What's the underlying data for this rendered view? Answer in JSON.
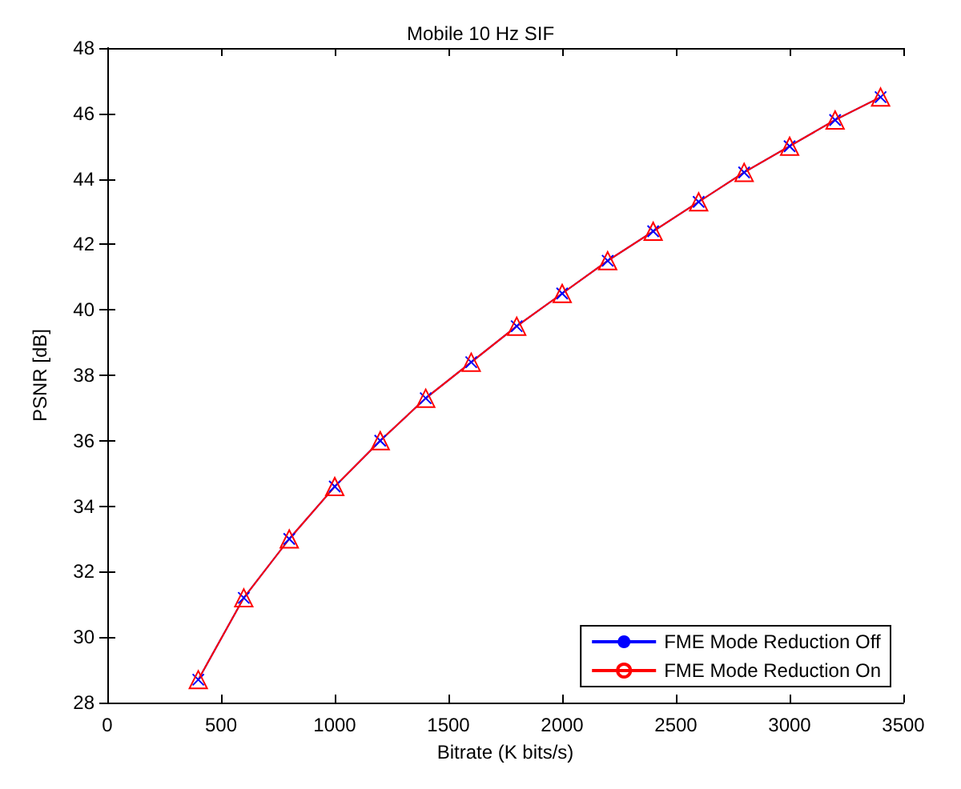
{
  "chart_data": {
    "type": "line",
    "title": "Mobile 10 Hz SIF",
    "xlabel": "Bitrate (K bits/s)",
    "ylabel": "PSNR [dB]",
    "x": [
      400,
      600,
      800,
      1000,
      1200,
      1400,
      1600,
      1800,
      2000,
      2200,
      2400,
      2600,
      2800,
      3000,
      3200,
      3400
    ],
    "series": [
      {
        "name": "FME Mode Reduction Off",
        "color": "#0000ff",
        "marker": "cross",
        "values": [
          28.7,
          31.2,
          33.0,
          34.6,
          36.0,
          37.3,
          38.4,
          39.5,
          40.5,
          41.5,
          42.4,
          43.3,
          44.2,
          45.0,
          45.8,
          46.5
        ]
      },
      {
        "name": "FME Mode Reduction On",
        "color": "#ff0000",
        "marker": "triangle",
        "values": [
          28.7,
          31.2,
          33.0,
          34.6,
          36.0,
          37.3,
          38.4,
          39.5,
          40.5,
          41.5,
          42.4,
          43.3,
          44.2,
          45.0,
          45.8,
          46.5
        ]
      }
    ],
    "xlim": [
      0,
      3500
    ],
    "xticks": [
      0,
      500,
      1000,
      1500,
      2000,
      2500,
      3000,
      3500
    ],
    "ylim": [
      28,
      48
    ],
    "yticks": [
      28,
      30,
      32,
      34,
      36,
      38,
      40,
      42,
      44,
      46,
      48
    ],
    "grid": false,
    "legend": "bottom right",
    "line_style": "solid"
  }
}
